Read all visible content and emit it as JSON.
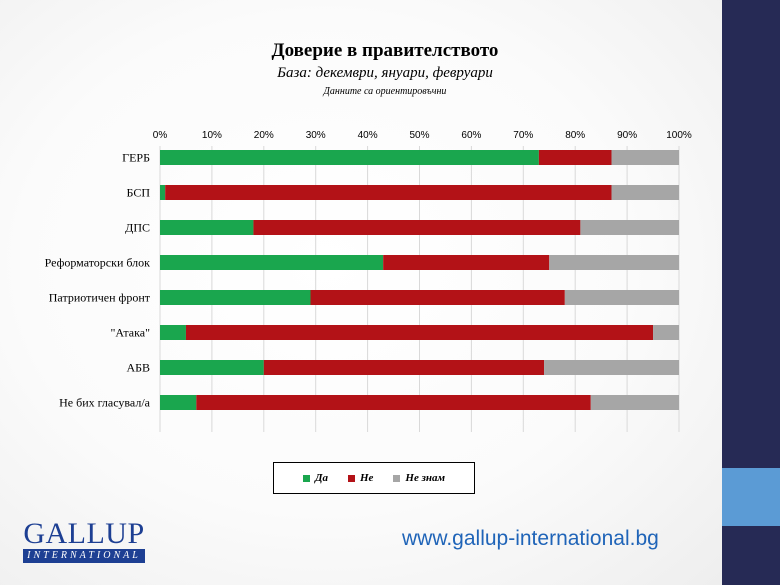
{
  "header": {
    "title": "Доверие в правителството",
    "subtitle": "База: декември, януари, февруари",
    "note": "Данните са ориентировъчни"
  },
  "colors": {
    "yes": "#1aa64e",
    "no": "#b31217",
    "dont_know": "#a6a6a6",
    "sidebar": "#262a55",
    "accent": "#5b9bd5",
    "brand": "#1d3f93"
  },
  "chart_data": {
    "type": "bar",
    "orientation": "horizontal",
    "stacked": true,
    "categories": [
      "ГЕРБ",
      "БСП",
      "ДПС",
      "Реформаторски блок",
      "Патриотичен фронт",
      "\"Атака\"",
      "АБВ",
      "Не бих гласувал/а"
    ],
    "series": [
      {
        "name": "Да",
        "values": [
          73,
          1,
          18,
          43,
          29,
          5,
          20,
          7
        ]
      },
      {
        "name": "Не",
        "values": [
          14,
          86,
          63,
          32,
          49,
          90,
          54,
          76
        ]
      },
      {
        "name": "Не знам",
        "values": [
          13,
          13,
          19,
          25,
          22,
          5,
          26,
          17
        ]
      }
    ],
    "xlim": [
      0,
      100
    ],
    "x_ticks": [
      "0%",
      "10%",
      "20%",
      "30%",
      "40%",
      "50%",
      "60%",
      "70%",
      "80%",
      "90%",
      "100%"
    ],
    "axis_position": "top",
    "grid": "vertical",
    "legend_position": "bottom"
  },
  "legend": {
    "yes_label": "Да",
    "no_label": "Не",
    "dont_know_label": "Не знам"
  },
  "footer": {
    "logo_word": "GALLUP",
    "logo_sub": "INTERNATIONAL",
    "website": "www.gallup-international.bg"
  }
}
